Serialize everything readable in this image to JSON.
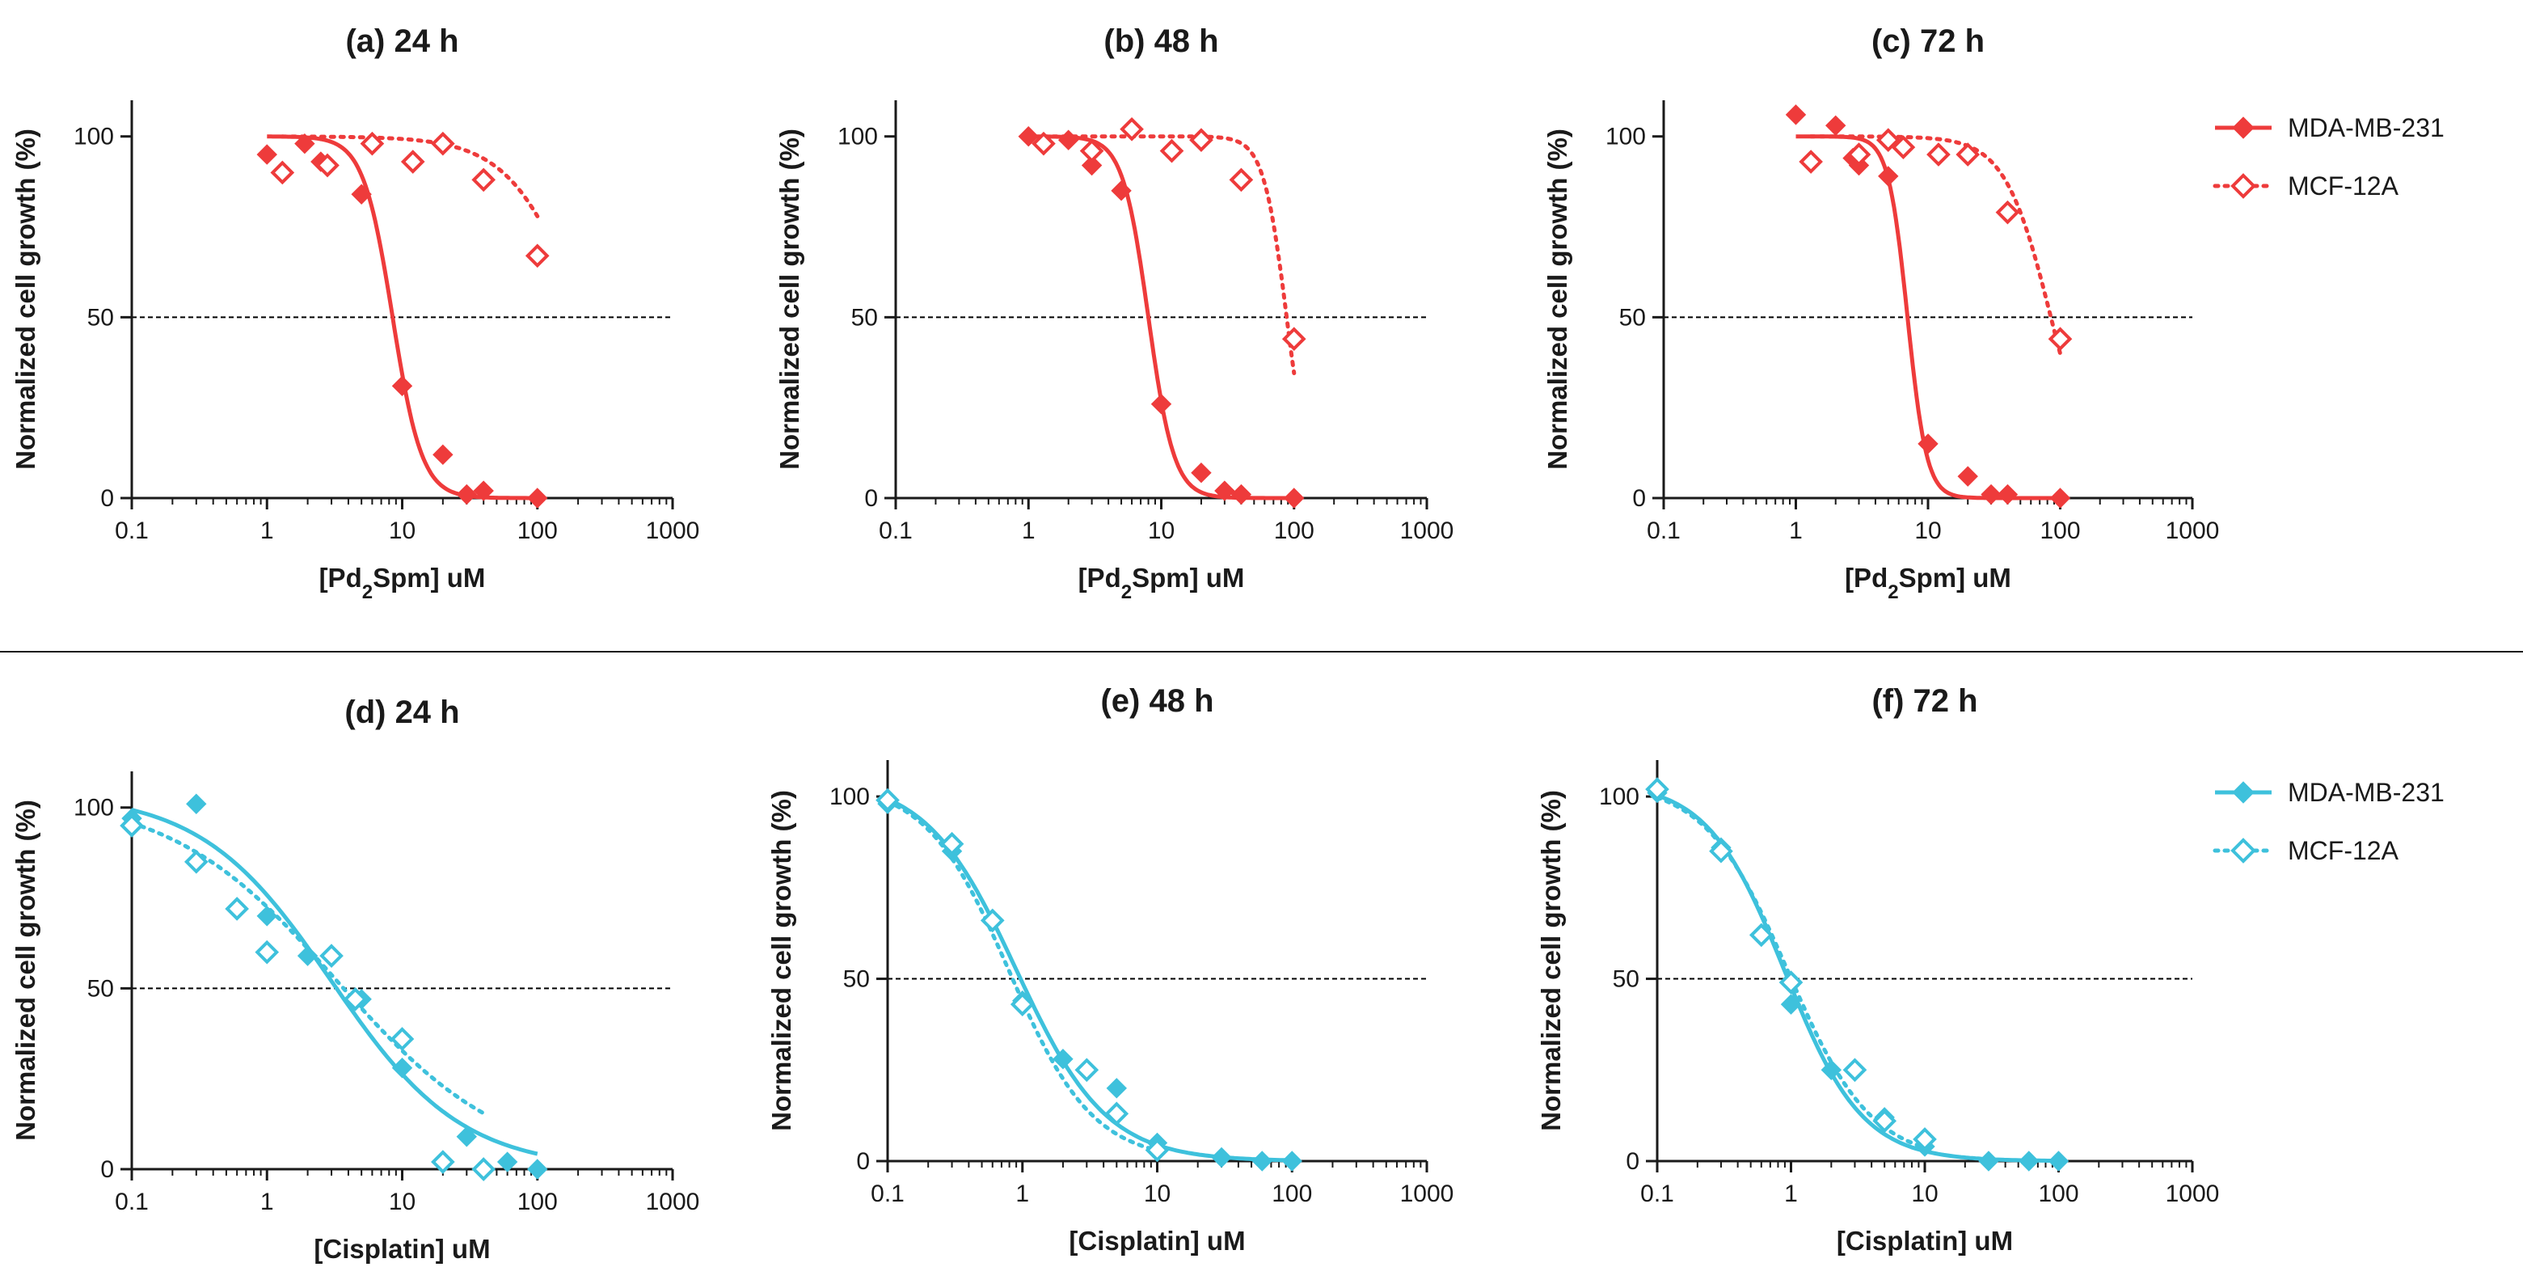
{
  "colors": {
    "pd_series": "#ee3b3b",
    "cis_series": "#3ec1dc",
    "text": "#1a1a1a",
    "axis": "#1a1a1a"
  },
  "legends": [
    {
      "items": [
        {
          "label": "MDA-MB-231",
          "marker": "filled-diamond",
          "line": "solid"
        },
        {
          "label": "MCF-12A",
          "marker": "open-diamond",
          "line": "dotted"
        }
      ]
    },
    {
      "items": [
        {
          "label": "MDA-MB-231",
          "marker": "filled-diamond",
          "line": "solid"
        },
        {
          "label": "MCF-12A",
          "marker": "open-diamond",
          "line": "dotted"
        }
      ]
    }
  ],
  "chart_data": [
    {
      "type": "scatter",
      "title": "(a) 24 h",
      "xlabel": "[Pd₂Spm] uM",
      "ylabel": "Normalized cell growth (%)",
      "xscale": "log",
      "xlim": [
        0.1,
        1000
      ],
      "ylim": [
        0,
        110
      ],
      "xticks": [
        "0.1",
        "1",
        "10",
        "100",
        "1000"
      ],
      "yticks": [
        "0",
        "50",
        "100"
      ],
      "reference_line": 50,
      "series": [
        {
          "name": "MDA-MB-231",
          "marker": "filled",
          "x": [
            1,
            1.9,
            2.5,
            5,
            10,
            20,
            30,
            40,
            100
          ],
          "y": [
            95,
            98,
            93,
            84,
            31,
            12,
            1,
            2,
            0
          ],
          "fit": {
            "top": 100,
            "bottom": 0,
            "ic50": 8.5,
            "hill": 4
          }
        },
        {
          "name": "MCF-12A",
          "marker": "open",
          "x": [
            1.3,
            2.8,
            6,
            12,
            20,
            40,
            100
          ],
          "y": [
            90,
            92,
            98,
            93,
            98,
            88,
            67
          ],
          "fit": {
            "top": 100,
            "bottom": 0,
            "ic50": 220,
            "hill": 1.6
          }
        }
      ]
    },
    {
      "type": "scatter",
      "title": "(b) 48 h",
      "xlabel": "[Pd₂Spm] uM",
      "ylabel": "Normalized cell growth (%)",
      "xscale": "log",
      "xlim": [
        0.1,
        1000
      ],
      "ylim": [
        0,
        110
      ],
      "xticks": [
        "0.1",
        "1",
        "10",
        "100",
        "1000"
      ],
      "yticks": [
        "0",
        "50",
        "100"
      ],
      "reference_line": 50,
      "series": [
        {
          "name": "MDA-MB-231",
          "marker": "filled",
          "x": [
            1,
            2,
            3,
            5,
            10,
            20,
            30,
            40,
            100
          ],
          "y": [
            100,
            99,
            92,
            85,
            26,
            7,
            2,
            1,
            0
          ],
          "fit": {
            "top": 100,
            "bottom": 0,
            "ic50": 8,
            "hill": 4.5
          }
        },
        {
          "name": "MCF-12A",
          "marker": "open",
          "x": [
            1.3,
            3,
            6,
            12,
            20,
            40,
            100
          ],
          "y": [
            98,
            96,
            102,
            96,
            99,
            88,
            44
          ],
          "fit": {
            "top": 100,
            "bottom": 0,
            "ic50": 88,
            "hill": 5
          }
        }
      ]
    },
    {
      "type": "scatter",
      "title": "(c) 72 h",
      "xlabel": "[Pd₂Spm] uM",
      "ylabel": "Normalized cell growth (%)",
      "xscale": "log",
      "xlim": [
        0.1,
        1000
      ],
      "ylim": [
        0,
        110
      ],
      "xticks": [
        "0.1",
        "1",
        "10",
        "100",
        "1000"
      ],
      "yticks": [
        "0",
        "50",
        "100"
      ],
      "reference_line": 50,
      "series": [
        {
          "name": "MDA-MB-231",
          "marker": "filled",
          "x": [
            1,
            2,
            2.7,
            3,
            5,
            10,
            20,
            30,
            40,
            100
          ],
          "y": [
            106,
            103,
            94,
            92,
            89,
            15,
            6,
            1,
            1,
            0
          ],
          "fit": {
            "top": 100,
            "bottom": 0,
            "ic50": 7,
            "hill": 6
          }
        },
        {
          "name": "MCF-12A",
          "marker": "open",
          "x": [
            1.3,
            3,
            5,
            6.5,
            12,
            20,
            40,
            100
          ],
          "y": [
            93,
            95,
            99,
            97,
            95,
            95,
            79,
            44
          ],
          "fit": {
            "top": 100,
            "bottom": 0,
            "ic50": 85,
            "hill": 2.5
          }
        }
      ]
    },
    {
      "type": "scatter",
      "title": "(d) 24 h",
      "xlabel": "[Cisplatin] uM",
      "ylabel": "Normalized cell growth (%)",
      "xscale": "log",
      "xlim": [
        0.1,
        1000
      ],
      "ylim": [
        0,
        110
      ],
      "xticks": [
        "0.1",
        "1",
        "10",
        "100",
        "1000"
      ],
      "yticks": [
        "0",
        "50",
        "100"
      ],
      "reference_line": 50,
      "series": [
        {
          "name": "MDA-MB-231",
          "marker": "filled",
          "x": [
            0.1,
            0.3,
            1,
            2,
            5,
            10,
            30,
            60,
            100
          ],
          "y": [
            97,
            101,
            70,
            59,
            47,
            28,
            9,
            2,
            0
          ],
          "fit": {
            "top": 104,
            "bottom": 0,
            "ic50": 3,
            "hill": 0.9
          }
        },
        {
          "name": "MCF-12A",
          "marker": "open",
          "x": [
            0.1,
            0.3,
            0.6,
            1,
            3,
            4.5,
            10,
            20,
            40
          ],
          "y": [
            95,
            85,
            72,
            60,
            59,
            47,
            36,
            2,
            0
          ],
          "fit": {
            "top": 104,
            "bottom": 0,
            "ic50": 3.3,
            "hill": 0.7,
            "xmax": 40
          }
        }
      ]
    },
    {
      "type": "scatter",
      "title": "(e) 48 h",
      "xlabel": "[Cisplatin] uM",
      "ylabel": "Normalized cell growth (%)",
      "xscale": "log",
      "xlim": [
        0.1,
        1000
      ],
      "ylim": [
        0,
        110
      ],
      "xticks": [
        "0.1",
        "1",
        "10",
        "100",
        "1000"
      ],
      "yticks": [
        "0",
        "50",
        "100"
      ],
      "reference_line": 50,
      "series": [
        {
          "name": "MDA-MB-231",
          "marker": "filled",
          "x": [
            0.1,
            0.3,
            1,
            2,
            5,
            10,
            30,
            60,
            100
          ],
          "y": [
            98,
            85,
            44,
            28,
            20,
            5,
            1,
            0,
            0
          ],
          "fit": {
            "top": 105,
            "bottom": 0,
            "ic50": 0.9,
            "hill": 1.3
          }
        },
        {
          "name": "MCF-12A",
          "marker": "open",
          "x": [
            0.1,
            0.3,
            0.6,
            1,
            3,
            5,
            10
          ],
          "y": [
            99,
            87,
            66,
            43,
            25,
            13,
            3
          ],
          "fit": {
            "top": 104,
            "bottom": 0,
            "ic50": 0.8,
            "hill": 1.4
          }
        }
      ]
    },
    {
      "type": "scatter",
      "title": "(f) 72 h",
      "xlabel": "[Cisplatin] uM",
      "ylabel": "Normalized cell growth (%)",
      "xscale": "log",
      "xlim": [
        0.1,
        1000
      ],
      "ylim": [
        0,
        110
      ],
      "xticks": [
        "0.1",
        "1",
        "10",
        "100",
        "1000"
      ],
      "yticks": [
        "0",
        "50",
        "100"
      ],
      "reference_line": 50,
      "series": [
        {
          "name": "MDA-MB-231",
          "marker": "filled",
          "x": [
            0.1,
            0.3,
            1,
            2,
            5,
            10,
            30,
            60,
            100
          ],
          "y": [
            101,
            86,
            43,
            25,
            12,
            4,
            0,
            0,
            0
          ],
          "fit": {
            "top": 104,
            "bottom": 0,
            "ic50": 0.9,
            "hill": 1.5
          }
        },
        {
          "name": "MCF-12A",
          "marker": "open",
          "x": [
            0.1,
            0.3,
            0.6,
            1,
            3,
            5,
            10
          ],
          "y": [
            102,
            85,
            62,
            49,
            25,
            11,
            6
          ],
          "fit": {
            "top": 104,
            "bottom": 0,
            "ic50": 0.95,
            "hill": 1.4
          }
        }
      ]
    }
  ]
}
